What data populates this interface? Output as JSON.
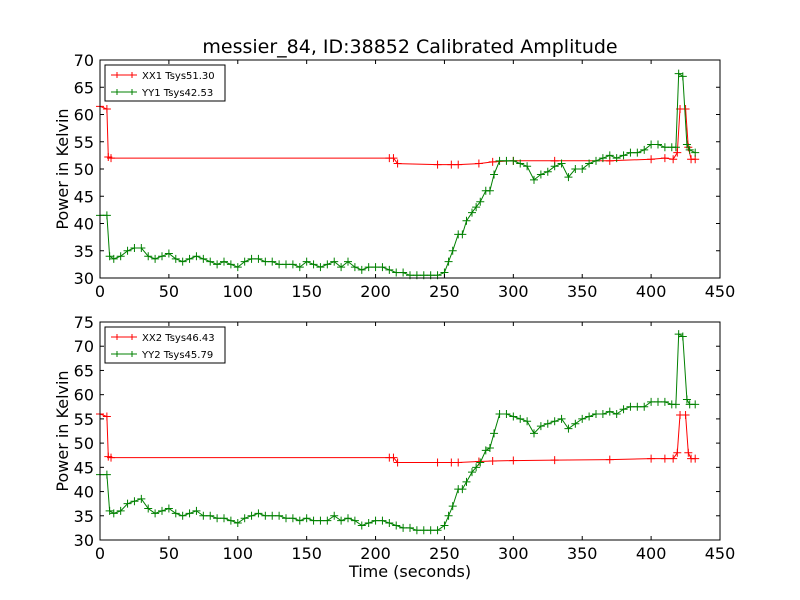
{
  "title": "messier_84, ID:38852 Calibrated Amplitude",
  "chart_data": [
    {
      "type": "line",
      "ylabel": "Power in Kelvin",
      "xlabel": "",
      "xlim": [
        0,
        450
      ],
      "ylim": [
        30,
        70
      ],
      "xticks": [
        "0",
        "50",
        "100",
        "150",
        "200",
        "250",
        "300",
        "350",
        "400",
        "450"
      ],
      "yticks": [
        "30",
        "35",
        "40",
        "45",
        "50",
        "55",
        "60",
        "65",
        "70"
      ],
      "legend_position": "upper-left",
      "series": [
        {
          "name": "XX1 Tsys51.30",
          "color": "#ff0000",
          "marker": "plus",
          "x": [
            0,
            5,
            6,
            8,
            210,
            213,
            216,
            245,
            255,
            260,
            275,
            285,
            300,
            330,
            370,
            400,
            410,
            416,
            419,
            421,
            425,
            427,
            429,
            432
          ],
          "y": [
            61.5,
            61.0,
            52.2,
            52.0,
            52.0,
            52.0,
            51.0,
            50.8,
            50.8,
            50.8,
            51.0,
            51.3,
            51.5,
            51.5,
            51.5,
            51.8,
            52.0,
            51.8,
            53.0,
            61.0,
            61.0,
            54.0,
            51.8,
            51.8
          ]
        },
        {
          "name": "YY1 Tsys42.53",
          "color": "#008000",
          "marker": "plus",
          "x": [
            0,
            5,
            7,
            10,
            15,
            20,
            25,
            30,
            35,
            40,
            45,
            50,
            55,
            60,
            65,
            70,
            75,
            80,
            85,
            90,
            95,
            100,
            105,
            110,
            115,
            120,
            125,
            130,
            135,
            140,
            145,
            150,
            155,
            160,
            165,
            170,
            175,
            180,
            185,
            190,
            195,
            200,
            205,
            210,
            215,
            220,
            225,
            230,
            235,
            240,
            245,
            250,
            253,
            256,
            260,
            263,
            266,
            270,
            273,
            276,
            280,
            283,
            286,
            290,
            295,
            300,
            305,
            310,
            315,
            320,
            325,
            330,
            335,
            340,
            345,
            350,
            355,
            360,
            365,
            370,
            375,
            380,
            385,
            390,
            395,
            400,
            405,
            410,
            415,
            418,
            420,
            423,
            426,
            428,
            432
          ],
          "y": [
            41.5,
            41.5,
            34.0,
            33.5,
            34.0,
            35.0,
            35.5,
            35.5,
            34.0,
            33.5,
            34.0,
            34.5,
            33.5,
            33.0,
            33.5,
            34.0,
            33.5,
            33.0,
            32.5,
            33.0,
            32.5,
            32.0,
            33.0,
            33.5,
            33.5,
            33.0,
            33.0,
            32.5,
            32.5,
            32.5,
            32.0,
            33.0,
            32.5,
            32.0,
            32.5,
            33.0,
            32.0,
            33.0,
            32.0,
            31.5,
            32.0,
            32.0,
            32.0,
            31.5,
            31.0,
            31.0,
            30.5,
            30.5,
            30.5,
            30.5,
            30.5,
            31.0,
            33.0,
            35.0,
            38.0,
            38.0,
            40.5,
            42.0,
            43.0,
            44.0,
            46.0,
            46.0,
            49.0,
            51.5,
            51.5,
            51.5,
            51.0,
            50.5,
            48.0,
            49.0,
            49.5,
            50.5,
            51.0,
            48.5,
            50.0,
            50.0,
            51.0,
            51.5,
            52.0,
            52.5,
            52.0,
            52.5,
            53.0,
            53.0,
            53.5,
            54.5,
            54.5,
            54.0,
            54.0,
            54.0,
            67.5,
            67.0,
            54.5,
            53.5,
            53.0
          ]
        }
      ]
    },
    {
      "type": "line",
      "ylabel": "Power in Kelvin",
      "xlabel": "Time (seconds)",
      "xlim": [
        0,
        450
      ],
      "ylim": [
        30,
        75
      ],
      "xticks": [
        "0",
        "50",
        "100",
        "150",
        "200",
        "250",
        "300",
        "350",
        "400",
        "450"
      ],
      "yticks": [
        "30",
        "35",
        "40",
        "45",
        "50",
        "55",
        "60",
        "65",
        "70",
        "75"
      ],
      "legend_position": "upper-left",
      "series": [
        {
          "name": "XX2 Tsys46.43",
          "color": "#ff0000",
          "marker": "plus",
          "x": [
            0,
            5,
            6,
            8,
            210,
            213,
            216,
            245,
            255,
            260,
            275,
            285,
            300,
            330,
            370,
            400,
            410,
            416,
            419,
            421,
            425,
            427,
            429,
            432
          ],
          "y": [
            56.0,
            55.5,
            47.2,
            47.0,
            47.0,
            47.0,
            46.0,
            46.0,
            46.0,
            46.0,
            46.2,
            46.3,
            46.4,
            46.5,
            46.6,
            46.8,
            46.8,
            46.8,
            48.0,
            55.8,
            55.8,
            48.0,
            46.8,
            46.8
          ]
        },
        {
          "name": "YY2 Tsys45.79",
          "color": "#008000",
          "marker": "plus",
          "x": [
            0,
            5,
            7,
            10,
            15,
            20,
            25,
            30,
            35,
            40,
            45,
            50,
            55,
            60,
            65,
            70,
            75,
            80,
            85,
            90,
            95,
            100,
            105,
            110,
            115,
            120,
            125,
            130,
            135,
            140,
            145,
            150,
            155,
            160,
            165,
            170,
            175,
            180,
            185,
            190,
            195,
            200,
            205,
            210,
            215,
            220,
            225,
            230,
            235,
            240,
            245,
            250,
            253,
            256,
            260,
            263,
            266,
            270,
            273,
            276,
            280,
            283,
            286,
            290,
            295,
            300,
            305,
            310,
            315,
            320,
            325,
            330,
            335,
            340,
            345,
            350,
            355,
            360,
            365,
            370,
            375,
            380,
            385,
            390,
            395,
            400,
            405,
            410,
            415,
            418,
            420,
            423,
            426,
            428,
            432
          ],
          "y": [
            43.5,
            43.5,
            36.0,
            35.5,
            36.0,
            37.5,
            38.0,
            38.5,
            36.5,
            35.5,
            36.0,
            36.5,
            35.5,
            35.0,
            35.5,
            36.0,
            35.0,
            35.0,
            34.5,
            34.5,
            34.0,
            33.5,
            34.5,
            35.0,
            35.5,
            35.0,
            35.0,
            35.0,
            34.5,
            34.5,
            34.0,
            34.5,
            34.0,
            34.0,
            34.0,
            35.0,
            34.0,
            34.5,
            34.0,
            33.0,
            33.5,
            34.0,
            34.0,
            33.5,
            33.0,
            32.5,
            32.5,
            32.0,
            32.0,
            32.0,
            32.0,
            33.0,
            35.0,
            37.0,
            40.5,
            40.5,
            42.0,
            44.0,
            45.0,
            46.0,
            48.5,
            49.0,
            52.0,
            56.0,
            56.0,
            55.5,
            55.0,
            54.5,
            52.0,
            53.5,
            54.0,
            54.5,
            55.0,
            53.0,
            54.0,
            55.0,
            55.5,
            56.0,
            56.0,
            56.5,
            56.0,
            57.0,
            57.5,
            57.5,
            57.5,
            58.5,
            58.5,
            58.5,
            58.0,
            58.0,
            72.5,
            72.0,
            59.0,
            58.0,
            58.0
          ]
        }
      ]
    }
  ]
}
